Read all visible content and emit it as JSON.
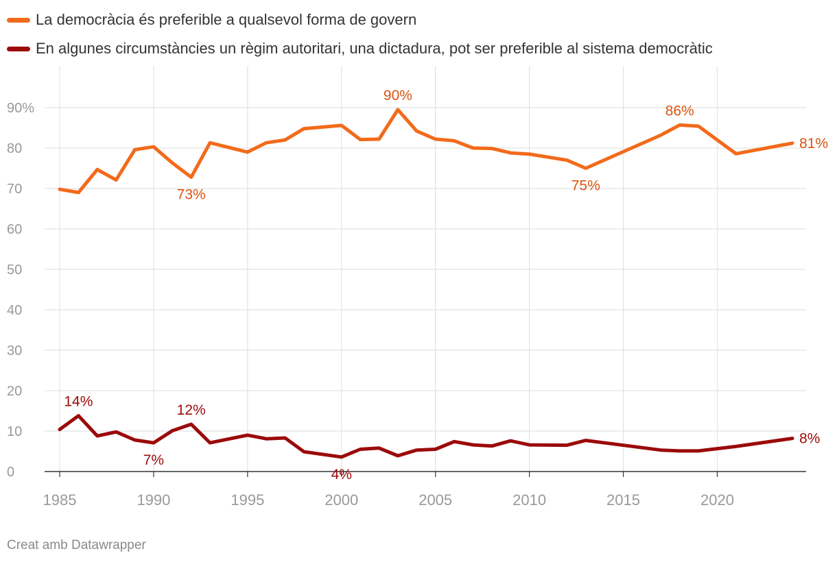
{
  "footer": {
    "credit": "Creat amb Datawrapper"
  },
  "chart_data": {
    "type": "line",
    "title": "",
    "xlabel": "",
    "ylabel": "",
    "xlim": [
      1985,
      2024
    ],
    "ylim": [
      0,
      90
    ],
    "grid": true,
    "legend_position": "top-left",
    "x_ticks": [
      "1985",
      "1990",
      "1995",
      "2000",
      "2005",
      "2010",
      "2015",
      "2020"
    ],
    "y_ticks": [
      "0",
      "10",
      "20",
      "30",
      "40",
      "50",
      "60",
      "70",
      "80",
      "90%"
    ],
    "series": [
      {
        "name": "La democràcia és preferible a qualsevol forma de govern",
        "color": "#f26a1b",
        "label_color": "#d9540f",
        "points": [
          [
            1985,
            69.8
          ],
          [
            1986,
            69.0
          ],
          [
            1987,
            74.7
          ],
          [
            1988,
            72.1
          ],
          [
            1989,
            79.6
          ],
          [
            1990,
            80.3
          ],
          [
            1991,
            76.3
          ],
          [
            1992,
            72.8
          ],
          [
            1993,
            81.3
          ],
          [
            1995,
            79.0
          ],
          [
            1996,
            81.3
          ],
          [
            1997,
            82.0
          ],
          [
            1998,
            84.8
          ],
          [
            2000,
            85.6
          ],
          [
            2001,
            82.1
          ],
          [
            2002,
            82.2
          ],
          [
            2003,
            89.5
          ],
          [
            2004,
            84.2
          ],
          [
            2005,
            82.2
          ],
          [
            2006,
            81.8
          ],
          [
            2007,
            80.0
          ],
          [
            2008,
            79.9
          ],
          [
            2009,
            78.8
          ],
          [
            2010,
            78.5
          ],
          [
            2012,
            77.0
          ],
          [
            2013,
            75.0
          ],
          [
            2017,
            83.2
          ],
          [
            2018,
            85.7
          ],
          [
            2019,
            85.4
          ],
          [
            2021,
            78.6
          ],
          [
            2024,
            81.2
          ]
        ],
        "annotations": [
          {
            "x": 1992,
            "y": 72.8,
            "text": "73%",
            "pos": "below"
          },
          {
            "x": 2003,
            "y": 89.5,
            "text": "90%",
            "pos": "above"
          },
          {
            "x": 2013,
            "y": 75.0,
            "text": "75%",
            "pos": "below"
          },
          {
            "x": 2018,
            "y": 85.7,
            "text": "86%",
            "pos": "above"
          },
          {
            "x": 2024,
            "y": 81.2,
            "text": "81%",
            "pos": "right"
          }
        ]
      },
      {
        "name": "En algunes circumstàncies un règim autoritari, una dictadura, pot ser preferible al sistema democràtic",
        "color": "#9b0a0a",
        "label_color": "#9b0a0a",
        "points": [
          [
            1985,
            10.4
          ],
          [
            1986,
            13.8
          ],
          [
            1987,
            8.8
          ],
          [
            1988,
            9.8
          ],
          [
            1989,
            7.8
          ],
          [
            1990,
            7.1
          ],
          [
            1991,
            10.1
          ],
          [
            1992,
            11.7
          ],
          [
            1993,
            7.1
          ],
          [
            1995,
            9.0
          ],
          [
            1996,
            8.1
          ],
          [
            1997,
            8.3
          ],
          [
            1998,
            4.9
          ],
          [
            2000,
            3.6
          ],
          [
            2001,
            5.5
          ],
          [
            2002,
            5.8
          ],
          [
            2003,
            3.9
          ],
          [
            2004,
            5.3
          ],
          [
            2005,
            5.5
          ],
          [
            2006,
            7.4
          ],
          [
            2007,
            6.6
          ],
          [
            2008,
            6.3
          ],
          [
            2009,
            7.6
          ],
          [
            2010,
            6.6
          ],
          [
            2012,
            6.5
          ],
          [
            2013,
            7.7
          ],
          [
            2017,
            5.3
          ],
          [
            2018,
            5.1
          ],
          [
            2019,
            5.1
          ],
          [
            2021,
            6.2
          ],
          [
            2024,
            8.2
          ]
        ],
        "annotations": [
          {
            "x": 1986,
            "y": 13.8,
            "text": "14%",
            "pos": "above"
          },
          {
            "x": 1990,
            "y": 7.1,
            "text": "7%",
            "pos": "below"
          },
          {
            "x": 1992,
            "y": 11.7,
            "text": "12%",
            "pos": "above"
          },
          {
            "x": 2000,
            "y": 3.6,
            "text": "4%",
            "pos": "below"
          },
          {
            "x": 2024,
            "y": 8.2,
            "text": "8%",
            "pos": "right"
          }
        ]
      }
    ]
  }
}
